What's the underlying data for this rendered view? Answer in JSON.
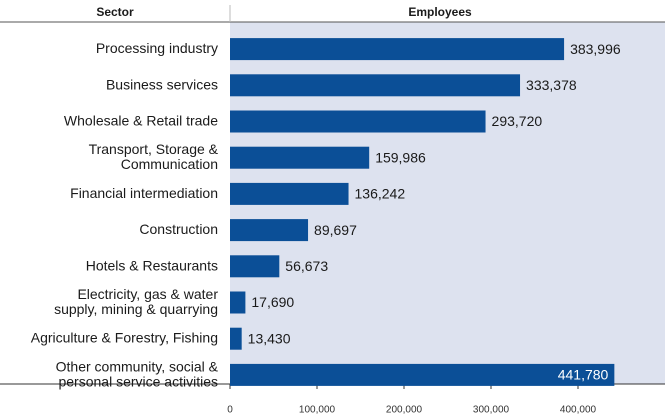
{
  "chart_data": {
    "type": "bar",
    "orientation": "horizontal",
    "headers": [
      "Sector",
      "Employees"
    ],
    "categories": [
      "Processing industry",
      "Business services",
      "Wholesale & Retail trade",
      "Transport, Storage &\nCommunication",
      "Financial intermediation",
      "Construction",
      "Hotels & Restaurants",
      "Electricity, gas & water\nsupply, mining & quarrying",
      "Agriculture & Forestry, Fishing",
      "Other community, social &\npersonal service activities"
    ],
    "values": [
      383996,
      333378,
      293720,
      159986,
      136242,
      89697,
      56673,
      17690,
      13430,
      441780
    ],
    "value_labels": [
      "383,996",
      "333,378",
      "293,720",
      "159,986",
      "136,242",
      "89,697",
      "56,673",
      "17,690",
      "13,430",
      "441,780"
    ],
    "color": "#0b4f97",
    "xlim": [
      0,
      500000
    ],
    "xticks": [
      0,
      {
        "value": 100000,
        "label": "100,000"
      },
      {
        "value": 200000,
        "label": "200,000"
      },
      {
        "value": 300000,
        "label": "300,000"
      },
      {
        "value": 400000,
        "label": "400,000"
      }
    ]
  }
}
